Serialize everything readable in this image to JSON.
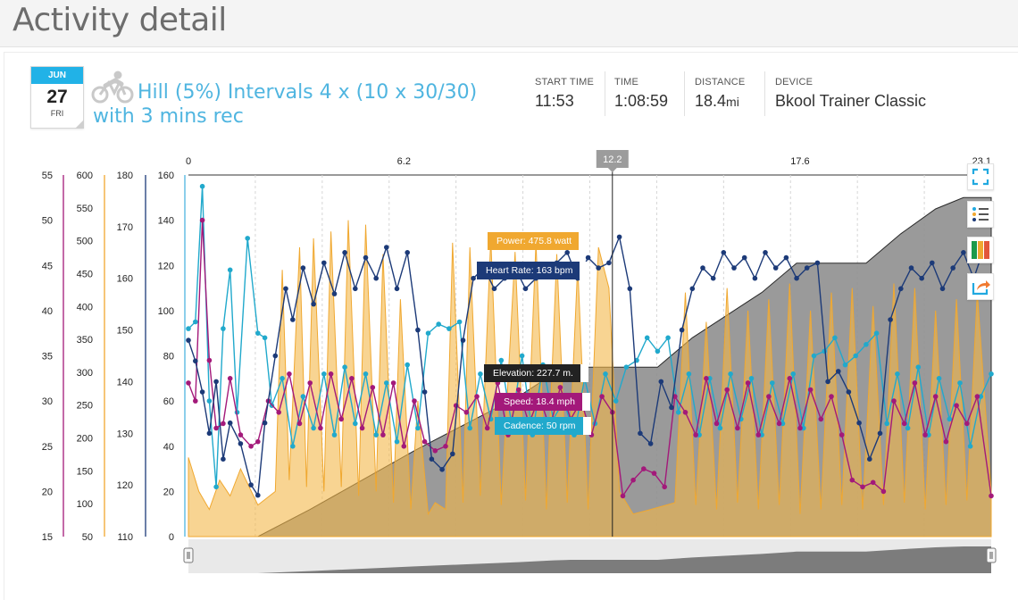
{
  "page": {
    "title": "Activity detail"
  },
  "date": {
    "month": "JUN",
    "day": "27",
    "weekday": "FRI"
  },
  "activity": {
    "sport_icon": "cycling-icon",
    "title": "Hill (5%) Intervals 4 x (10 x 30/30) with 3 mins rec"
  },
  "stats": [
    {
      "label": "START TIME",
      "value": "11:53",
      "unit": ""
    },
    {
      "label": "TIME",
      "value": "1:08:59",
      "unit": ""
    },
    {
      "label": "DISTANCE",
      "value": "18.4",
      "unit": "mi"
    },
    {
      "label": "DEVICE",
      "value": "Bkool Trainer Classic",
      "unit": ""
    }
  ],
  "toolbar": [
    {
      "name": "fullscreen-icon"
    },
    {
      "name": "legend-list-icon"
    },
    {
      "name": "series-colors-icon"
    },
    {
      "name": "share-icon"
    }
  ],
  "tooltips": {
    "power": "Power: 475.8 watt",
    "heart_rate": "Heart Rate: 163 bpm",
    "elevation": "Elevation: 227.7 m.",
    "speed": "Speed: 18.4 mph",
    "cadence": "Cadence: 50 rpm"
  },
  "colors": {
    "power": "#f0a830",
    "heart_rate": "#1c3a78",
    "elevation": "#8f8f8f",
    "speed": "#a3197a",
    "cadence": "#21a9cc",
    "accent": "#21b2e7"
  },
  "chart_data": {
    "type": "line",
    "x_axis": {
      "ticks": [
        "0",
        "6.2",
        "12.2",
        "17.6",
        "23.1"
      ],
      "range": [
        0,
        23.1
      ],
      "cursor_label": "12.2"
    },
    "y_axes": [
      {
        "series": "speed",
        "ticks": [
          "55",
          "50",
          "45",
          "40",
          "35",
          "30",
          "25",
          "20",
          "15"
        ],
        "range": [
          15,
          55
        ]
      },
      {
        "series": "power",
        "ticks": [
          "600",
          "550",
          "500",
          "450",
          "400",
          "350",
          "300",
          "250",
          "200",
          "150",
          "100",
          "50"
        ],
        "range": [
          50,
          600
        ]
      },
      {
        "series": "heart_rate",
        "ticks": [
          "180",
          "170",
          "160",
          "150",
          "140",
          "130",
          "120",
          "110"
        ],
        "range": [
          110,
          180
        ]
      },
      {
        "series": "cadence",
        "ticks": [
          "160",
          "140",
          "120",
          "100",
          "80",
          "60",
          "40",
          "20",
          "0"
        ],
        "range": [
          0,
          160
        ]
      }
    ],
    "cursor_x": 12.2,
    "series": [
      {
        "key": "elevation",
        "x": [
          0,
          2.0,
          3.5,
          5.0,
          6.5,
          8.0,
          9.5,
          10.5,
          11.0,
          12.2,
          13.5,
          14.5,
          15.5,
          16.5,
          17.5,
          18.5,
          19.5,
          20.5,
          21.5,
          22.3,
          23.1
        ],
        "y": [
          0,
          0,
          12,
          25,
          38,
          50,
          62,
          72,
          75,
          75,
          75,
          88,
          98,
          108,
          121,
          121,
          121,
          134,
          145,
          150,
          150
        ]
      },
      {
        "key": "power",
        "base_scale": "cadence",
        "x": [
          0,
          0.3,
          0.6,
          0.9,
          1.2,
          1.5,
          2.0,
          2.5,
          2.7,
          2.9,
          3.2,
          3.4,
          3.6,
          3.9,
          4.1,
          4.4,
          4.6,
          4.9,
          5.1,
          5.4,
          5.6,
          5.9,
          6.1,
          6.4,
          6.6,
          6.9,
          7.1,
          7.4,
          7.6,
          7.9,
          8.1,
          8.4,
          8.7,
          9.0,
          9.4,
          9.7,
          10.0,
          10.3,
          10.6,
          10.9,
          11.2,
          11.5,
          11.8,
          12.1,
          12.4,
          12.8,
          13.3,
          14.0,
          14.3,
          14.6,
          14.9,
          15.2,
          15.5,
          15.8,
          16.1,
          16.4,
          16.7,
          17.0,
          17.3,
          17.6,
          17.9,
          18.2,
          18.5,
          18.8,
          19.1,
          19.4,
          19.7,
          20.0,
          20.3,
          20.6,
          20.9,
          21.2,
          21.5,
          21.8,
          22.1,
          22.4,
          22.7,
          23.1
        ],
        "y": [
          35,
          20,
          12,
          25,
          18,
          30,
          14,
          20,
          118,
          25,
          128,
          22,
          132,
          20,
          135,
          22,
          140,
          18,
          138,
          20,
          125,
          15,
          105,
          12,
          60,
          10,
          15,
          12,
          130,
          15,
          128,
          18,
          132,
          14,
          126,
          16,
          130,
          12,
          125,
          15,
          120,
          12,
          128,
          110,
          20,
          10,
          12,
          15,
          108,
          14,
          95,
          12,
          110,
          15,
          100,
          12,
          105,
          14,
          112,
          10,
          100,
          12,
          108,
          14,
          110,
          12,
          102,
          14,
          112,
          15,
          110,
          12,
          100,
          14,
          105,
          16,
          108,
          20
        ]
      },
      {
        "key": "heart_rate",
        "x": [
          0,
          0.2,
          0.4,
          0.6,
          0.8,
          1.0,
          1.2,
          1.5,
          1.8,
          2.0,
          2.2,
          2.5,
          2.8,
          3.0,
          3.3,
          3.6,
          3.9,
          4.2,
          4.5,
          4.8,
          5.1,
          5.4,
          5.7,
          6.0,
          6.3,
          6.6,
          6.8,
          7.0,
          7.3,
          7.6,
          7.9,
          8.2,
          8.5,
          8.8,
          9.1,
          9.4,
          9.7,
          10.0,
          10.3,
          10.6,
          10.9,
          11.2,
          11.5,
          11.8,
          12.1,
          12.4,
          12.7,
          13.0,
          13.3,
          13.6,
          13.9,
          14.2,
          14.5,
          14.8,
          15.1,
          15.4,
          15.7,
          16.0,
          16.3,
          16.6,
          16.9,
          17.2,
          17.5,
          17.8,
          18.1,
          18.4,
          18.7,
          19.0,
          19.3,
          19.6,
          19.9,
          20.2,
          20.5,
          20.8,
          21.1,
          21.4,
          21.7,
          22.0,
          22.3,
          22.6,
          22.9,
          23.1
        ],
        "y": [
          148,
          144,
          138,
          130,
          140,
          125,
          132,
          128,
          120,
          118,
          132,
          145,
          158,
          152,
          162,
          155,
          163,
          157,
          165,
          158,
          164,
          160,
          166,
          158,
          165,
          150,
          138,
          125,
          123,
          126,
          148,
          160,
          162,
          158,
          160,
          162,
          158,
          160,
          161,
          163,
          165,
          160,
          164,
          162,
          163,
          168,
          158,
          130,
          128,
          140,
          135,
          150,
          158,
          162,
          160,
          165,
          162,
          164,
          160,
          165,
          162,
          164,
          160,
          162,
          163,
          140,
          142,
          138,
          132,
          125,
          130,
          152,
          158,
          162,
          160,
          163,
          158,
          162,
          165,
          160,
          166,
          165
        ]
      },
      {
        "key": "cadence",
        "x": [
          0,
          0.2,
          0.4,
          0.6,
          0.8,
          1.0,
          1.2,
          1.4,
          1.7,
          2.0,
          2.2,
          2.4,
          2.7,
          3.0,
          3.3,
          3.6,
          3.9,
          4.2,
          4.5,
          4.8,
          5.1,
          5.4,
          5.7,
          6.0,
          6.3,
          6.6,
          6.9,
          7.2,
          7.5,
          7.8,
          8.1,
          8.4,
          8.7,
          9.0,
          9.3,
          9.6,
          9.9,
          10.2,
          10.5,
          10.8,
          11.1,
          11.4,
          11.7,
          12.0,
          12.3,
          12.6,
          12.9,
          13.2,
          13.5,
          13.8,
          14.1,
          14.4,
          14.7,
          15.0,
          15.3,
          15.6,
          15.9,
          16.2,
          16.5,
          16.8,
          17.1,
          17.4,
          17.7,
          18.0,
          18.3,
          18.6,
          18.9,
          19.2,
          19.5,
          19.8,
          20.1,
          20.4,
          20.7,
          21.0,
          21.3,
          21.6,
          21.9,
          22.2,
          22.5,
          22.8,
          23.1
        ],
        "y": [
          92,
          95,
          155,
          60,
          22,
          92,
          118,
          55,
          132,
          90,
          88,
          58,
          70,
          40,
          62,
          48,
          72,
          45,
          75,
          50,
          72,
          45,
          68,
          42,
          76,
          48,
          90,
          94,
          92,
          95,
          48,
          72,
          52,
          78,
          50,
          80,
          45,
          76,
          52,
          60,
          45,
          70,
          50,
          72,
          60,
          75,
          78,
          88,
          82,
          88,
          55,
          72,
          45,
          70,
          48,
          72,
          52,
          70,
          45,
          68,
          50,
          72,
          48,
          80,
          82,
          88,
          76,
          80,
          85,
          90,
          50,
          72,
          48,
          75,
          45,
          70,
          52,
          68,
          40,
          62,
          72
        ]
      },
      {
        "key": "speed",
        "base_scale": "cadence",
        "x": [
          0,
          0.2,
          0.4,
          0.6,
          0.8,
          1.0,
          1.2,
          1.5,
          1.8,
          2.0,
          2.3,
          2.6,
          2.9,
          3.2,
          3.5,
          3.8,
          4.1,
          4.4,
          4.7,
          5.0,
          5.3,
          5.6,
          5.9,
          6.2,
          6.5,
          6.8,
          7.1,
          7.4,
          7.7,
          8.0,
          8.3,
          8.6,
          8.9,
          9.2,
          9.5,
          9.8,
          10.1,
          10.4,
          10.7,
          11.0,
          11.3,
          11.6,
          11.9,
          12.2,
          12.5,
          12.8,
          13.1,
          13.4,
          13.7,
          14.0,
          14.3,
          14.6,
          14.9,
          15.2,
          15.5,
          15.8,
          16.1,
          16.4,
          16.7,
          17.0,
          17.3,
          17.6,
          17.9,
          18.2,
          18.5,
          18.8,
          19.1,
          19.4,
          19.7,
          20.0,
          20.3,
          20.6,
          20.9,
          21.2,
          21.5,
          21.8,
          22.1,
          22.4,
          22.7,
          23.1
        ],
        "y": [
          68,
          60,
          140,
          78,
          48,
          50,
          70,
          45,
          40,
          42,
          60,
          55,
          72,
          50,
          68,
          48,
          72,
          52,
          70,
          48,
          66,
          45,
          68,
          40,
          60,
          42,
          38,
          40,
          58,
          55,
          62,
          48,
          68,
          45,
          65,
          50,
          62,
          48,
          66,
          52,
          60,
          45,
          62,
          55,
          18,
          25,
          30,
          28,
          22,
          62,
          55,
          45,
          70,
          50,
          65,
          48,
          68,
          45,
          62,
          50,
          70,
          48,
          65,
          52,
          62,
          45,
          25,
          22,
          24,
          20,
          60,
          50,
          68,
          45,
          62,
          42,
          58,
          50,
          62,
          18
        ]
      }
    ]
  }
}
